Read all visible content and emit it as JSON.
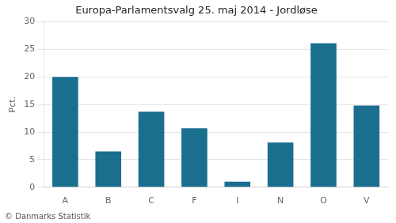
{
  "chart_data": {
    "type": "bar",
    "title": "Europa-Parlamentsvalg 25. maj 2014 - Jordløse",
    "ylabel": "Pct.",
    "annotations": [
      "© Danmarks Statistik"
    ],
    "categories": [
      "A",
      "B",
      "C",
      "F",
      "I",
      "N",
      "O",
      "V"
    ],
    "values": [
      20.0,
      6.5,
      13.7,
      10.7,
      1.0,
      8.1,
      26.1,
      14.8
    ],
    "color": "#1a6e8e",
    "ylim": [
      0,
      30
    ],
    "yticks": [
      0,
      5,
      10,
      15,
      20,
      25,
      30
    ],
    "grid": true
  }
}
